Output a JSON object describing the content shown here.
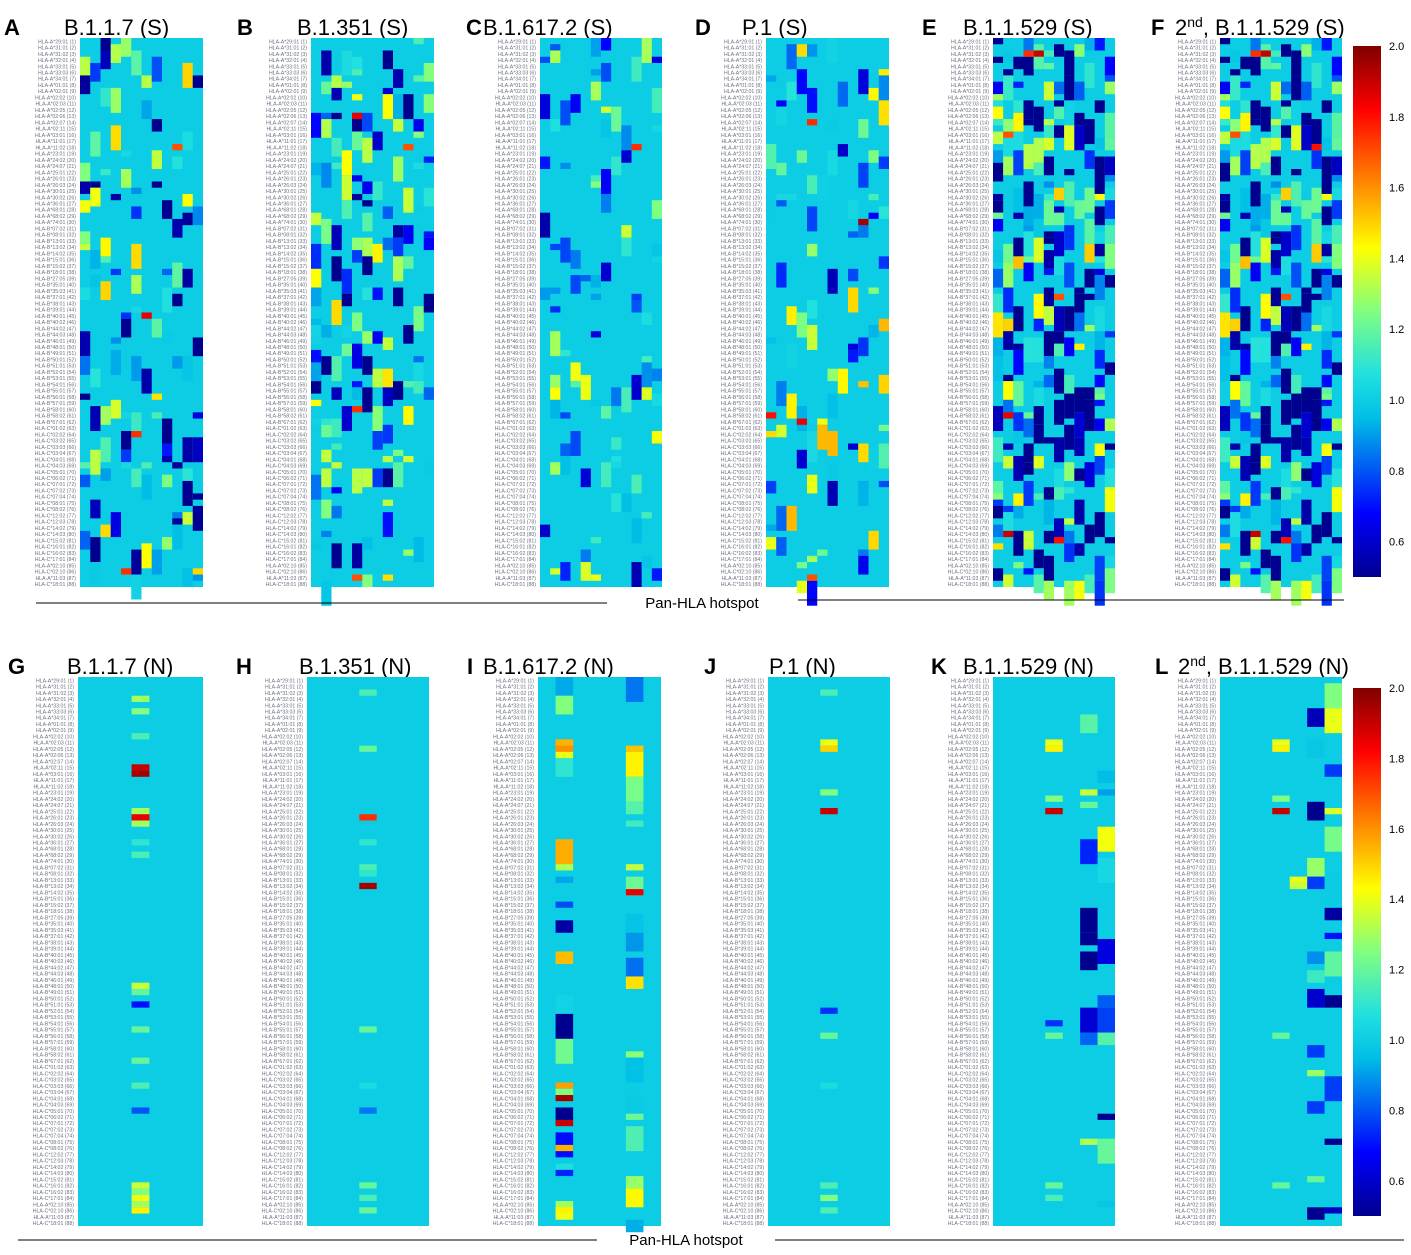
{
  "chart_data": {
    "type": "heatmap",
    "x_axis_title": "Pan-HLA hotspot",
    "colormap": {
      "name": "jet",
      "range": [
        0.5,
        2.0
      ],
      "baseline": 1.0,
      "stops": [
        "#00008f",
        "#0000ff",
        "#00bfe6",
        "#20e0e0",
        "#80ff80",
        "#ffff00",
        "#ff8000",
        "#ff0000",
        "#800000"
      ],
      "ticks": [
        "2.0",
        "1.8",
        "1.6",
        "1.4",
        "1.2",
        "1.0",
        "0.8",
        "0.6"
      ],
      "tick_values": [
        2.0,
        1.8,
        1.6,
        1.4,
        1.2,
        1.0,
        0.8,
        0.6
      ]
    },
    "n_alleles": 88,
    "allele_labels": [
      "HLA-A*29:01",
      "HLA-A*31:01",
      "HLA-A*31:02",
      "HLA-A*32:01",
      "HLA-A*33:01",
      "HLA-A*33:03",
      "HLA-A*34:01",
      "HLA-A*01:01",
      "HLA-A*02:01",
      "HLA-A*02:02",
      "HLA-A*02:03",
      "HLA-A*02:05",
      "HLA-A*02:06",
      "HLA-A*02:07",
      "HLA-A*02:11",
      "HLA-A*03:01",
      "HLA-A*11:01",
      "HLA-A*11:02",
      "HLA-A*23:01",
      "HLA-A*24:02",
      "HLA-A*24:07",
      "HLA-A*25:01",
      "HLA-A*26:01",
      "HLA-A*26:03",
      "HLA-A*30:01",
      "HLA-A*30:02",
      "HLA-A*36:01",
      "HLA-A*68:01",
      "HLA-A*68:02",
      "HLA-A*74:01",
      "HLA-B*07:02",
      "HLA-B*08:01",
      "HLA-B*13:01",
      "HLA-B*13:02",
      "HLA-B*14:02",
      "HLA-B*15:01",
      "HLA-B*15:02",
      "HLA-B*18:01",
      "HLA-B*27:05",
      "HLA-B*35:01",
      "HLA-B*35:03",
      "HLA-B*37:01",
      "HLA-B*38:01",
      "HLA-B*39:01",
      "HLA-B*40:01",
      "HLA-B*40:02",
      "HLA-B*44:02",
      "HLA-B*44:03",
      "HLA-B*46:01",
      "HLA-B*48:01",
      "HLA-B*49:01",
      "HLA-B*50:01",
      "HLA-B*51:01",
      "HLA-B*52:01",
      "HLA-B*53:01",
      "HLA-B*54:01",
      "HLA-B*55:01",
      "HLA-B*56:01",
      "HLA-B*57:01",
      "HLA-B*58:01",
      "HLA-B*58:02",
      "HLA-B*67:01",
      "HLA-C*01:02",
      "HLA-C*02:02",
      "HLA-C*03:02",
      "HLA-C*03:03",
      "HLA-C*03:04",
      "HLA-C*04:01",
      "HLA-C*04:03",
      "HLA-C*05:01",
      "HLA-C*06:02",
      "HLA-C*07:01",
      "HLA-C*07:02",
      "HLA-C*07:04",
      "HLA-C*08:01",
      "HLA-C*08:02",
      "HLA-C*12:02",
      "HLA-C*12:03",
      "HLA-C*14:02",
      "HLA-C*14:03",
      "HLA-C*15:02",
      "HLA-C*16:01",
      "HLA-C*16:02",
      "HLA-C*17:01",
      "HLA-A*02:10",
      "HLA-C*02:10",
      "HLA-A*11:03",
      "HLA-C*18:01"
    ],
    "panels": [
      {
        "label": "A",
        "title": "B.1.1.7 (S)",
        "protein": "S",
        "n_cols": 12,
        "density": 0.16,
        "scale": 0.55,
        "bias": -0.05,
        "seed": 11,
        "hotspots": [
          {
            "row": 85,
            "col": 4,
            "value": 1.75
          },
          {
            "row": 44,
            "col": 6,
            "value": 1.85
          },
          {
            "row": 17,
            "col": 9,
            "value": 1.7
          },
          {
            "row": 63,
            "col": 5,
            "value": 1.75
          }
        ]
      },
      {
        "label": "B",
        "title": "B.1.351 (S)",
        "protein": "S",
        "n_cols": 12,
        "density": 0.16,
        "scale": 0.55,
        "bias": -0.05,
        "seed": 23,
        "hotspots": [
          {
            "row": 86,
            "col": 4,
            "value": 1.7
          },
          {
            "row": 17,
            "col": 9,
            "value": 1.7
          },
          {
            "row": 59,
            "col": 4,
            "value": 1.75
          },
          {
            "row": 12,
            "col": 4,
            "value": 1.85
          }
        ]
      },
      {
        "label": "C",
        "title": "B.1.617.2 (S)",
        "protein": "S",
        "n_cols": 12,
        "density": 0.1,
        "scale": 0.45,
        "bias": -0.02,
        "seed": 37,
        "hotspots": [
          {
            "row": 17,
            "col": 9,
            "value": 1.75
          }
        ]
      },
      {
        "label": "D",
        "title": "P.1 (S)",
        "protein": "S",
        "n_cols": 12,
        "density": 0.11,
        "scale": 0.5,
        "bias": 0.05,
        "seed": 41,
        "hotspots": [
          {
            "row": 29,
            "col": 9,
            "value": 1.95
          },
          {
            "row": 61,
            "col": 3,
            "value": 1.85
          },
          {
            "row": 60,
            "col": 0,
            "value": 1.8
          },
          {
            "row": 86,
            "col": 4,
            "value": 1.7
          },
          {
            "row": 13,
            "col": 4,
            "value": 1.75
          }
        ]
      },
      {
        "label": "E",
        "title": "B.1.1.529 (S)",
        "protein": "S",
        "n_cols": 12,
        "density": 0.34,
        "scale": 0.65,
        "bias": -0.12,
        "seed": 53,
        "hotspots": [
          {
            "row": 2,
            "col": 3,
            "value": 1.75
          },
          {
            "row": 2,
            "col": 4,
            "value": 1.9
          },
          {
            "row": 15,
            "col": 1,
            "value": 1.7
          },
          {
            "row": 60,
            "col": 1,
            "value": 1.85
          },
          {
            "row": 79,
            "col": 1,
            "value": 1.9
          },
          {
            "row": 80,
            "col": 6,
            "value": 1.8
          },
          {
            "row": 41,
            "col": 6,
            "value": 1.7
          }
        ]
      },
      {
        "label": "F",
        "title": "2nd, B.1.1.529 (S)",
        "protein": "S",
        "n_cols": 12,
        "density": 0.34,
        "scale": 0.65,
        "bias": -0.12,
        "seed": 53,
        "hotspots": [
          {
            "row": 2,
            "col": 3,
            "value": 1.75
          },
          {
            "row": 2,
            "col": 4,
            "value": 1.9
          },
          {
            "row": 15,
            "col": 1,
            "value": 1.7
          },
          {
            "row": 17,
            "col": 9,
            "value": 1.8
          },
          {
            "row": 79,
            "col": 3,
            "value": 1.9
          },
          {
            "row": 80,
            "col": 6,
            "value": 1.8
          },
          {
            "row": 41,
            "col": 6,
            "value": 1.7
          }
        ]
      },
      {
        "label": "G",
        "title": "B.1.1.7 (N)",
        "protein": "N",
        "n_cols": 7,
        "density": 0,
        "scale": 0.4,
        "bias": 0.1,
        "seed": 61,
        "bands": [
          {
            "row": 3,
            "col": 3,
            "value": 1.3
          },
          {
            "row": 5,
            "col": 3,
            "value": 1.25
          },
          {
            "row": 9,
            "col": 3,
            "value": 1.15
          },
          {
            "row": 14,
            "col": 3,
            "value": 1.9
          },
          {
            "row": 15,
            "col": 3,
            "value": 1.95
          },
          {
            "row": 21,
            "col": 3,
            "value": 1.3
          },
          {
            "row": 22,
            "col": 3,
            "value": 1.85
          },
          {
            "row": 23,
            "col": 3,
            "value": 1.3
          },
          {
            "row": 26,
            "col": 3,
            "value": 1.1
          },
          {
            "row": 28,
            "col": 3,
            "value": 1.15
          },
          {
            "row": 49,
            "col": 3,
            "value": 1.35
          },
          {
            "row": 50,
            "col": 3,
            "value": 1.2
          },
          {
            "row": 52,
            "col": 3,
            "value": 0.7
          },
          {
            "row": 56,
            "col": 3,
            "value": 1.2
          },
          {
            "row": 61,
            "col": 3,
            "value": 1.2
          },
          {
            "row": 65,
            "col": 3,
            "value": 1.15
          },
          {
            "row": 69,
            "col": 3,
            "value": 0.8
          },
          {
            "row": 81,
            "col": 3,
            "value": 1.35
          },
          {
            "row": 82,
            "col": 3,
            "value": 1.25
          },
          {
            "row": 83,
            "col": 3,
            "value": 1.4
          },
          {
            "row": 84,
            "col": 3,
            "value": 1.3
          },
          {
            "row": 85,
            "col": 3,
            "value": 1.45
          }
        ]
      },
      {
        "label": "H",
        "title": "B.1.351 (N)",
        "protein": "N",
        "n_cols": 7,
        "density": 0,
        "scale": 0.4,
        "bias": 0.1,
        "seed": 67,
        "bands": [
          {
            "row": 2,
            "col": 3,
            "value": 1.15
          },
          {
            "row": 11,
            "col": 3,
            "value": 1.2
          },
          {
            "row": 22,
            "col": 3,
            "value": 1.75
          },
          {
            "row": 26,
            "col": 3,
            "value": 1.1
          },
          {
            "row": 30,
            "col": 3,
            "value": 1.15
          },
          {
            "row": 31,
            "col": 3,
            "value": 1.1
          },
          {
            "row": 33,
            "col": 3,
            "value": 1.95
          },
          {
            "row": 56,
            "col": 3,
            "value": 1.2
          },
          {
            "row": 65,
            "col": 3,
            "value": 1.05
          },
          {
            "row": 69,
            "col": 3,
            "value": 0.85
          },
          {
            "row": 81,
            "col": 3,
            "value": 1.2
          },
          {
            "row": 83,
            "col": 3,
            "value": 1.15
          },
          {
            "row": 85,
            "col": 3,
            "value": 1.2
          }
        ]
      },
      {
        "label": "I",
        "title": "B.1.617.2 (N)",
        "protein": "N",
        "n_cols": 7,
        "density": 0.3,
        "scale": 0.6,
        "bias": 0.0,
        "seed": 71,
        "band_cols": [
          1,
          5
        ],
        "bands": [
          {
            "row": 10,
            "col": 1,
            "value": 1.55
          },
          {
            "row": 11,
            "col": 1,
            "value": 1.6
          },
          {
            "row": 12,
            "col": 1,
            "value": 1.4
          },
          {
            "row": 34,
            "col": 5,
            "value": 1.85
          },
          {
            "row": 67,
            "col": 1,
            "value": 1.95
          },
          {
            "row": 71,
            "col": 1,
            "value": 1.9
          },
          {
            "row": 75,
            "col": 1,
            "value": 1.55
          },
          {
            "row": 85,
            "col": 1,
            "value": 1.45
          },
          {
            "row": 86,
            "col": 1,
            "value": 1.4
          }
        ]
      },
      {
        "label": "J",
        "title": "P.1 (N)",
        "protein": "N",
        "n_cols": 7,
        "density": 0,
        "scale": 0.4,
        "bias": 0.1,
        "seed": 79,
        "bands": [
          {
            "row": 2,
            "col": 3,
            "value": 1.15
          },
          {
            "row": 10,
            "col": 3,
            "value": 1.4
          },
          {
            "row": 11,
            "col": 3,
            "value": 1.5
          },
          {
            "row": 18,
            "col": 3,
            "value": 1.25
          },
          {
            "row": 21,
            "col": 3,
            "value": 1.9
          },
          {
            "row": 53,
            "col": 3,
            "value": 0.75
          },
          {
            "row": 57,
            "col": 3,
            "value": 1.2
          },
          {
            "row": 65,
            "col": 3,
            "value": 1.05
          },
          {
            "row": 81,
            "col": 3,
            "value": 1.15
          },
          {
            "row": 83,
            "col": 3,
            "value": 1.25
          },
          {
            "row": 85,
            "col": 3,
            "value": 1.15
          }
        ]
      },
      {
        "label": "K",
        "title": "B.1.1.529 (N)",
        "protein": "N",
        "n_cols": 7,
        "density": 0.2,
        "scale": 0.55,
        "bias": -0.08,
        "seed": 83,
        "band_cols": [
          5,
          6
        ],
        "bands": [
          {
            "row": 10,
            "col": 3,
            "value": 1.4
          },
          {
            "row": 11,
            "col": 3,
            "value": 1.45
          },
          {
            "row": 19,
            "col": 3,
            "value": 1.25
          },
          {
            "row": 21,
            "col": 3,
            "value": 1.9
          },
          {
            "row": 55,
            "col": 3,
            "value": 0.75
          },
          {
            "row": 57,
            "col": 3,
            "value": 1.2
          },
          {
            "row": 81,
            "col": 3,
            "value": 1.2
          },
          {
            "row": 83,
            "col": 3,
            "value": 1.15
          }
        ]
      },
      {
        "label": "L",
        "title": "2nd, B.1.1.529 (N)",
        "protein": "N",
        "n_cols": 7,
        "density": 0.22,
        "scale": 0.55,
        "bias": -0.08,
        "seed": 89,
        "band_cols": [
          5,
          6
        ],
        "bands": [
          {
            "row": 10,
            "col": 3,
            "value": 1.4
          },
          {
            "row": 11,
            "col": 3,
            "value": 1.45
          },
          {
            "row": 19,
            "col": 3,
            "value": 1.25
          },
          {
            "row": 21,
            "col": 3,
            "value": 1.9
          },
          {
            "row": 32,
            "col": 4,
            "value": 1.4
          },
          {
            "row": 33,
            "col": 4,
            "value": 1.35
          },
          {
            "row": 57,
            "col": 3,
            "value": 1.2
          },
          {
            "row": 81,
            "col": 3,
            "value": 1.2
          }
        ]
      }
    ]
  }
}
